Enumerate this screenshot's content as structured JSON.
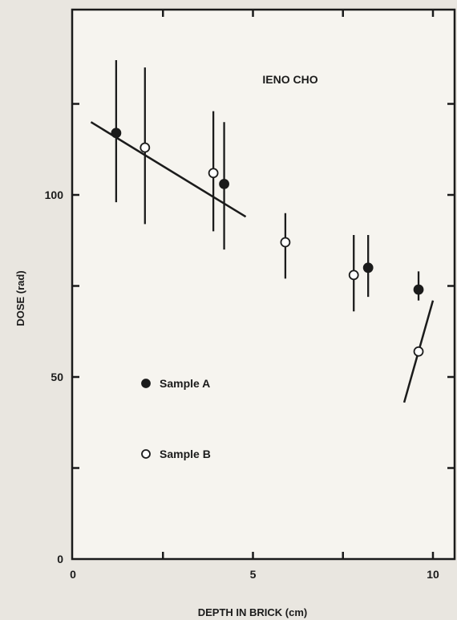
{
  "chart_data": {
    "type": "scatter",
    "annotation": "IENO CHO",
    "xlabel": "DEPTH IN BRICK (cm)",
    "ylabel": "DOSE (rad)",
    "xlim": [
      0,
      10.5
    ],
    "ylim": [
      0,
      148
    ],
    "x_ticks": [
      0,
      5,
      10
    ],
    "x_tick_labels": [
      "0",
      "5",
      "10"
    ],
    "x_minor_ticks": [
      2.5,
      7.5
    ],
    "y_ticks": [
      0,
      50,
      100
    ],
    "y_tick_labels": [
      "0",
      "50",
      "100"
    ],
    "y_minor_ticks": [
      25,
      75,
      125
    ],
    "series": [
      {
        "name": "Sample A",
        "marker": "filled",
        "points": [
          {
            "x": 1.2,
            "y": 117,
            "lo": 98,
            "hi": 137
          },
          {
            "x": 4.2,
            "y": 103,
            "lo": 85,
            "hi": 120
          },
          {
            "x": 8.2,
            "y": 80,
            "lo": 72,
            "hi": 89
          },
          {
            "x": 9.6,
            "y": 74,
            "lo": 71,
            "hi": 79
          }
        ]
      },
      {
        "name": "Sample B",
        "marker": "open",
        "points": [
          {
            "x": 2.0,
            "y": 113,
            "lo": 92,
            "hi": 135
          },
          {
            "x": 3.9,
            "y": 106,
            "lo": 90,
            "hi": 123
          },
          {
            "x": 5.9,
            "y": 87,
            "lo": 77,
            "hi": 95
          },
          {
            "x": 7.8,
            "y": 78,
            "lo": 68,
            "hi": 89
          },
          {
            "x": 9.6,
            "y": 57,
            "lo": 57,
            "hi": 57
          }
        ]
      }
    ],
    "fit_lines": [
      {
        "x": [
          0.5,
          4.8
        ],
        "y": [
          120,
          94
        ]
      },
      {
        "x": [
          9.2,
          10.0
        ],
        "y": [
          43,
          71
        ]
      }
    ],
    "grid": false
  }
}
